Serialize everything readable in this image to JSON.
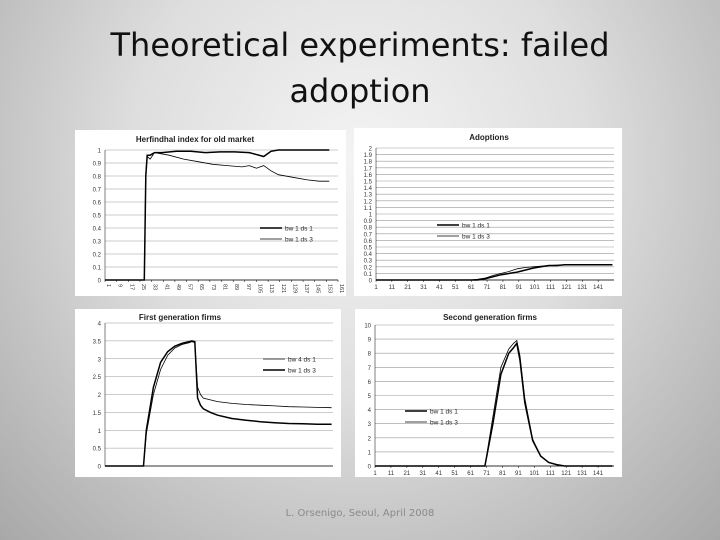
{
  "slide": {
    "title_line1": "Theoretical experiments: failed",
    "title_line2": "adoption",
    "footer": "L. Orsenigo, Seoul, April 2008"
  },
  "chart_data": [
    {
      "type": "line",
      "title": "Herfindhal index for old market",
      "ylim": [
        0,
        1
      ],
      "yticks": [
        "1",
        "0.9",
        "0.8",
        "0.7",
        "0.6",
        "0.5",
        "0.4",
        "0.3",
        "0.2",
        "0.1",
        "0"
      ],
      "xlim": [
        1,
        161
      ],
      "xticks": [
        "1",
        "9",
        "17",
        "25",
        "33",
        "41",
        "49",
        "57",
        "65",
        "73",
        "81",
        "89",
        "97",
        "105",
        "113",
        "121",
        "129",
        "137",
        "145",
        "153",
        "161"
      ],
      "grid": true,
      "legend_position": "lower-right",
      "series": [
        {
          "name": "bw 1 ds 1",
          "style": "thick",
          "x": [
            1,
            28,
            29,
            30,
            32,
            35,
            40,
            50,
            60,
            70,
            80,
            90,
            100,
            110,
            115,
            120,
            130,
            140,
            150,
            155
          ],
          "y": [
            0,
            0,
            0.8,
            0.96,
            0.96,
            0.98,
            0.98,
            0.99,
            0.99,
            0.98,
            0.985,
            0.985,
            0.98,
            0.95,
            0.99,
            1.0,
            1.0,
            1.0,
            1.0,
            1.0
          ]
        },
        {
          "name": "bw 1 ds 3",
          "style": "thin",
          "x": [
            1,
            28,
            29,
            30,
            32,
            35,
            45,
            55,
            65,
            75,
            85,
            95,
            100,
            105,
            110,
            115,
            120,
            130,
            140,
            148,
            155
          ],
          "y": [
            0,
            0,
            0.83,
            0.95,
            0.93,
            0.98,
            0.96,
            0.93,
            0.91,
            0.89,
            0.88,
            0.87,
            0.88,
            0.86,
            0.88,
            0.84,
            0.81,
            0.79,
            0.77,
            0.76,
            0.76
          ]
        }
      ]
    },
    {
      "type": "line",
      "title": "Adoptions",
      "ylim": [
        0,
        2
      ],
      "yticks": [
        "2",
        "1.9",
        "1.8",
        "1.7",
        "1.6",
        "1.5",
        "1.4",
        "1.3",
        "1.2",
        "1.1",
        "1",
        "0.9",
        "0.8",
        "0.7",
        "0.6",
        "0.5",
        "0.4",
        "0.3",
        "0.2",
        "0.1",
        "0"
      ],
      "xlim": [
        1,
        151
      ],
      "xticks": [
        "1",
        "11",
        "21",
        "31",
        "41",
        "51",
        "61",
        "71",
        "81",
        "91",
        "101",
        "111",
        "121",
        "131",
        "141"
      ],
      "grid": true,
      "legend_position": "center-right",
      "series": [
        {
          "name": "bw 1 ds 1",
          "style": "thick",
          "x": [
            1,
            65,
            70,
            75,
            80,
            85,
            90,
            95,
            100,
            105,
            110,
            115,
            120,
            150
          ],
          "y": [
            0,
            0,
            0.02,
            0.05,
            0.08,
            0.1,
            0.12,
            0.15,
            0.18,
            0.2,
            0.22,
            0.22,
            0.23,
            0.23
          ]
        },
        {
          "name": "bw 1 ds 3",
          "style": "thin",
          "x": [
            1,
            60,
            65,
            70,
            75,
            80,
            85,
            90,
            95,
            100,
            105,
            110,
            120,
            150
          ],
          "y": [
            0,
            0,
            0.01,
            0.03,
            0.07,
            0.1,
            0.13,
            0.17,
            0.19,
            0.2,
            0.21,
            0.22,
            0.23,
            0.23
          ]
        }
      ]
    },
    {
      "type": "line",
      "title": "First generation firms",
      "ylim": [
        0,
        4
      ],
      "yticks": [
        "4",
        "3.5",
        "3",
        "2.5",
        "2",
        "1.5",
        "1",
        "0.5",
        "0"
      ],
      "xlim": [
        1,
        161
      ],
      "xticks": [],
      "grid": true,
      "legend_position": "center-right",
      "series": [
        {
          "name": "bw 4 ds 1",
          "style": "thin",
          "x": [
            1,
            28,
            30,
            35,
            40,
            45,
            50,
            55,
            60,
            62,
            64,
            66,
            68,
            70,
            75,
            80,
            90,
            100,
            110,
            120,
            130,
            140,
            150,
            160
          ],
          "y": [
            0,
            0,
            0.9,
            2.0,
            2.7,
            3.1,
            3.3,
            3.4,
            3.45,
            3.48,
            3.45,
            2.2,
            2.0,
            1.9,
            1.85,
            1.8,
            1.75,
            1.72,
            1.7,
            1.68,
            1.66,
            1.65,
            1.64,
            1.63
          ]
        },
        {
          "name": "bw 1 ds 3",
          "style": "thick",
          "x": [
            1,
            28,
            30,
            35,
            40,
            45,
            50,
            55,
            60,
            62,
            64,
            66,
            68,
            70,
            75,
            80,
            90,
            100,
            110,
            120,
            130,
            140,
            150,
            160
          ],
          "y": [
            0,
            0,
            1.0,
            2.2,
            2.9,
            3.2,
            3.35,
            3.43,
            3.48,
            3.5,
            3.48,
            1.9,
            1.7,
            1.6,
            1.5,
            1.42,
            1.33,
            1.28,
            1.24,
            1.21,
            1.19,
            1.18,
            1.17,
            1.17
          ]
        }
      ]
    },
    {
      "type": "line",
      "title": "Second generation firms",
      "ylim": [
        0,
        10
      ],
      "yticks": [
        "10",
        "9",
        "8",
        "7",
        "6",
        "5",
        "4",
        "3",
        "2",
        "1",
        "0"
      ],
      "xlim": [
        1,
        151
      ],
      "xticks": [
        "1",
        "11",
        "21",
        "31",
        "41",
        "51",
        "61",
        "71",
        "81",
        "91",
        "101",
        "111",
        "121",
        "131",
        "141"
      ],
      "grid": true,
      "legend_position": "lower-left",
      "series": [
        {
          "name": "bw 1 ds 1",
          "style": "thick",
          "x": [
            1,
            70,
            75,
            80,
            85,
            88,
            90,
            92,
            95,
            100,
            105,
            110,
            115,
            120,
            150
          ],
          "y": [
            0,
            0,
            3.0,
            6.5,
            8.0,
            8.4,
            8.7,
            7.5,
            4.5,
            1.8,
            0.7,
            0.25,
            0.1,
            0.0,
            0.0
          ]
        },
        {
          "name": "bw 1 ds 3",
          "style": "thin",
          "x": [
            1,
            70,
            75,
            80,
            85,
            88,
            90,
            92,
            95,
            100,
            105,
            110,
            115,
            120,
            150
          ],
          "y": [
            0,
            0,
            3.5,
            7.0,
            8.3,
            8.7,
            8.9,
            7.8,
            4.8,
            1.9,
            0.7,
            0.25,
            0.1,
            0.0,
            0.0
          ]
        }
      ]
    }
  ]
}
